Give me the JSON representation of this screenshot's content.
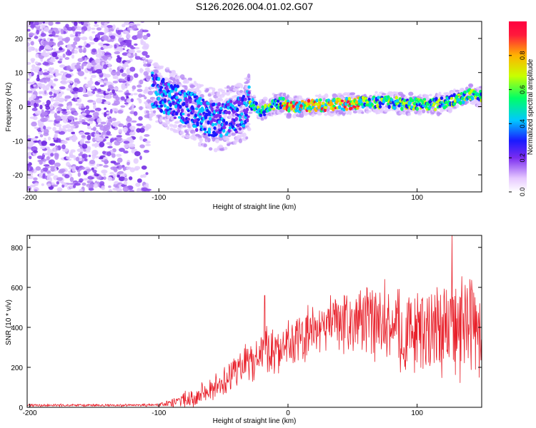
{
  "figure": {
    "title": "S126.2026.004.01.02.G07"
  },
  "chart_data": [
    {
      "type": "heatmap",
      "name": "spectrogram",
      "title": "",
      "xlabel": "Height of straight line (km)",
      "ylabel": "Frequency (Hz)",
      "xlim": [
        -202,
        150
      ],
      "ylim": [
        -25,
        25
      ],
      "xticks": [
        -200,
        -100,
        0,
        100
      ],
      "yticks": [
        -20,
        -10,
        0,
        10,
        20
      ],
      "colorbar": {
        "label": "Normalized spectral amplitude",
        "range": [
          0,
          1
        ],
        "ticks": [
          0.0,
          0.2,
          0.4,
          0.6,
          0.8
        ],
        "colors": [
          "#ffffff",
          "#d9b3ff",
          "#7b2cf0",
          "#1a1aff",
          "#00c8ff",
          "#00ff66",
          "#c8ff00",
          "#ffb300",
          "#ff1a3c"
        ]
      },
      "ridge": {
        "description_points_x": [
          -105,
          -95,
          -85,
          -75,
          -65,
          -55,
          -45,
          -35,
          -30,
          -25,
          -20,
          -15,
          -10,
          -5,
          0,
          10,
          20,
          30,
          40,
          50,
          60,
          70,
          80,
          90,
          100,
          110,
          120,
          130,
          140,
          150
        ],
        "description_points_freq": [
          5,
          3,
          1,
          -1,
          -3,
          -4,
          -3,
          -2,
          1,
          0,
          -1.5,
          0,
          1,
          1,
          0,
          0,
          0.3,
          0.5,
          0.6,
          1,
          1.2,
          1.3,
          1.3,
          0.8,
          0.8,
          0.5,
          1,
          2,
          3.5,
          3
        ],
        "peak_amplitude_x_range": [
          -5,
          55
        ]
      }
    },
    {
      "type": "line",
      "name": "snr",
      "title": "",
      "xlabel": "Height of straight line (km)",
      "ylabel": "SNR (10 * v/v)",
      "xlim": [
        -202,
        150
      ],
      "ylim": [
        0,
        860
      ],
      "xticks": [
        -200,
        -100,
        0,
        100
      ],
      "yticks": [
        0,
        200,
        400,
        600,
        800
      ],
      "series": [
        {
          "name": "SNR",
          "color": "#e8202a",
          "x": [
            -202,
            -180,
            -160,
            -140,
            -120,
            -100,
            -90,
            -80,
            -70,
            -60,
            -50,
            -40,
            -30,
            -25,
            -20,
            -15,
            -10,
            -5,
            0,
            10,
            20,
            30,
            40,
            50,
            60,
            70,
            80,
            90,
            100,
            110,
            120,
            130,
            140,
            150
          ],
          "mean": [
            10,
            10,
            10,
            10,
            10,
            12,
            20,
            40,
            60,
            90,
            130,
            180,
            230,
            260,
            270,
            290,
            300,
            300,
            310,
            340,
            380,
            410,
            430,
            440,
            440,
            400,
            390,
            380,
            380,
            390,
            390,
            400,
            400,
            380
          ],
          "spread": [
            8,
            8,
            8,
            8,
            8,
            10,
            25,
            45,
            55,
            65,
            80,
            100,
            130,
            140,
            150,
            150,
            150,
            150,
            150,
            150,
            160,
            160,
            170,
            180,
            190,
            220,
            230,
            240,
            240,
            260,
            280,
            300,
            300,
            300
          ],
          "peaks": [
            {
              "x": -18,
              "y": 560
            },
            {
              "x": 33,
              "y": 560
            },
            {
              "x": 75,
              "y": 640
            },
            {
              "x": 85,
              "y": 590
            },
            {
              "x": 127,
              "y": 860
            },
            {
              "x": 141,
              "y": 640
            }
          ]
        }
      ]
    }
  ]
}
